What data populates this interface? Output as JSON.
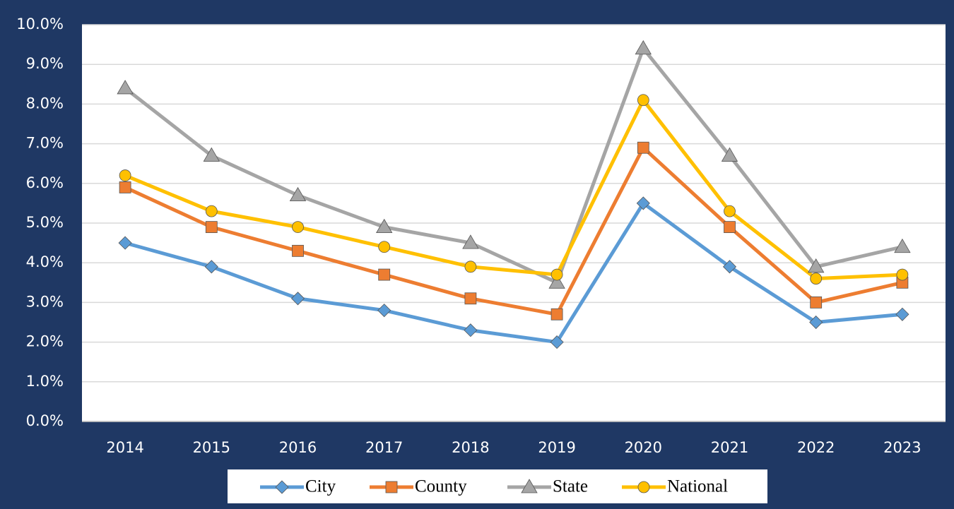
{
  "chart_data": {
    "type": "line",
    "categories": [
      "2014",
      "2015",
      "2016",
      "2017",
      "2018",
      "2019",
      "2020",
      "2021",
      "2022",
      "2023"
    ],
    "series": [
      {
        "name": "City",
        "color": "#5b9bd5",
        "marker": "diamond",
        "values": [
          4.5,
          3.9,
          3.1,
          2.8,
          2.3,
          2.0,
          5.5,
          3.9,
          2.5,
          2.7
        ]
      },
      {
        "name": "County",
        "color": "#ed7d31",
        "marker": "square",
        "values": [
          5.9,
          4.9,
          4.3,
          3.7,
          3.1,
          2.7,
          6.9,
          4.9,
          3.0,
          3.5
        ]
      },
      {
        "name": "State",
        "color": "#a5a5a5",
        "marker": "triangle",
        "values": [
          8.4,
          6.7,
          5.7,
          4.9,
          4.5,
          3.5,
          9.4,
          6.7,
          3.9,
          4.4
        ]
      },
      {
        "name": "National",
        "color": "#ffc000",
        "marker": "circle",
        "values": [
          6.2,
          5.3,
          4.9,
          4.4,
          3.9,
          3.7,
          8.1,
          5.3,
          3.6,
          3.7
        ]
      }
    ],
    "ylim": [
      0,
      10
    ],
    "yticks": [
      {
        "value": 0,
        "label": "0.0%"
      },
      {
        "value": 1,
        "label": "1.0%"
      },
      {
        "value": 2,
        "label": "2.0%"
      },
      {
        "value": 3,
        "label": "3.0%"
      },
      {
        "value": 4,
        "label": "4.0%"
      },
      {
        "value": 5,
        "label": "5.0%"
      },
      {
        "value": 6,
        "label": "6.0%"
      },
      {
        "value": 7,
        "label": "7.0%"
      },
      {
        "value": 8,
        "label": "8.0%"
      },
      {
        "value": 9,
        "label": "9.0%"
      },
      {
        "value": 10,
        "label": "10.0%"
      }
    ],
    "grid": true,
    "legend": "bottom"
  }
}
